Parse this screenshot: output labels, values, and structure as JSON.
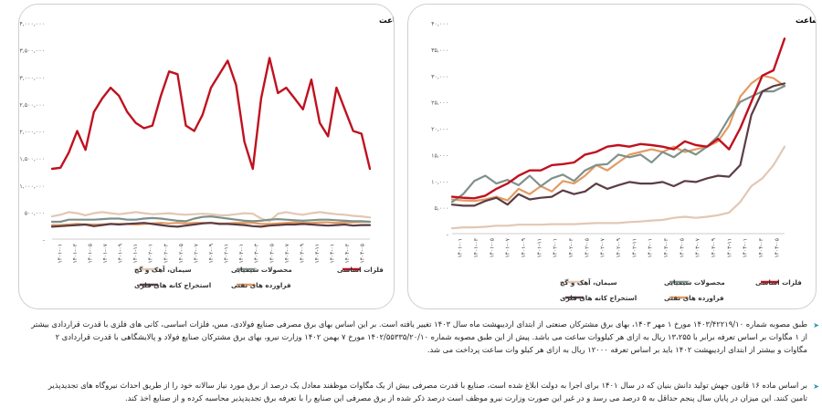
{
  "chart_data": [
    {
      "type": "line",
      "title": "روند نرخ برق در صنایع انرژی بر بازار سرمایه - ریال / مگاوات ساعت",
      "y_ticks": [
        "۴۰,۰۰۰",
        "۳۵,۰۰۰",
        "۳۰,۰۰۰",
        "۲۵,۰۰۰",
        "۲۰,۰۰۰",
        "۱۵,۰۰۰",
        "۱۰,۰۰۰",
        "۵,۰۰۰",
        "-"
      ],
      "ylim": [
        0,
        40000
      ],
      "x_labels": [
        "۱۴۰۱-۰۱",
        "۱۴۰۱-۰۳",
        "۱۴۰۱-۰۵",
        "۱۴۰۱-۰۷",
        "۱۴۰۱-۰۹",
        "۱۴۰۱-۱۱",
        "۱۴۰۲-۰۱",
        "۱۴۰۲-۰۳",
        "۱۴۰۲-۰۵",
        "۱۴۰۲-۰۷",
        "۱۴۰۲-۰۹",
        "۱۴۰۲-۱۱",
        "۱۴۰۳-۰۱",
        "۱۴۰۳-۰۳",
        "۱۴۰۳-۰۵",
        "۱۴۰۳-۰۷",
        "۱۴۰۳-۰۹",
        "۱۴۰۳-۱۱",
        "۱۴۰۴-۰۱",
        "۱۴۰۴-۰۳",
        "۱۴۰۴-۰۵"
      ],
      "legend": [
        "فلزات اساسی",
        "محصولات شیمیایی",
        "سیمان، آهک و گچ",
        "فراورده های نفتی",
        "استخراج کانه های فلزی"
      ],
      "series": [
        {
          "name": "فلزات اساسی",
          "color": "#c0111f",
          "values": [
            7000,
            6800,
            6700,
            7200,
            8500,
            9500,
            11000,
            12000,
            12000,
            13000,
            13200,
            13500,
            15000,
            15500,
            16500,
            16800,
            16500,
            17000,
            16800,
            16500,
            16000,
            17500,
            16800,
            16500,
            18000,
            16000,
            20000,
            25000,
            30000,
            31000,
            37000
          ]
        },
        {
          "name": "محصولات شیمیایی",
          "color": "#7f918a",
          "values": [
            6000,
            7500,
            10000,
            11000,
            9500,
            10200,
            9200,
            11000,
            9000,
            10500,
            11200,
            10000,
            12000,
            13000,
            13200,
            15000,
            14500,
            15000,
            13500,
            15500,
            14500,
            16000,
            15000,
            16500,
            18500,
            22000,
            25000,
            26000,
            27000,
            27000,
            28000
          ]
        },
        {
          "name": "سیمان، آهک و گچ",
          "color": "#e3c7b3",
          "values": [
            1000,
            1200,
            1200,
            1300,
            1500,
            1500,
            1700,
            1700,
            1700,
            1800,
            1800,
            1800,
            1900,
            2000,
            2000,
            2000,
            2200,
            2300,
            2500,
            2600,
            3000,
            3200,
            3000,
            3200,
            3500,
            4000,
            6000,
            9000,
            10500,
            13000,
            16500
          ]
        },
        {
          "name": "فراورده های نفتی",
          "color": "#e39b63",
          "values": [
            6500,
            6300,
            6200,
            6500,
            7000,
            6300,
            8500,
            7500,
            9000,
            8000,
            10000,
            9500,
            11000,
            13000,
            12000,
            13500,
            15000,
            15500,
            16000,
            15500,
            16500,
            15500,
            16000,
            16500,
            17500,
            20500,
            26000,
            28500,
            30000,
            29500,
            28000
          ]
        },
        {
          "name": "استخراج کانه های فلزی",
          "color": "#5b3d42",
          "values": [
            5500,
            5300,
            5300,
            6200,
            6800,
            5500,
            7500,
            6500,
            6800,
            7000,
            8200,
            7500,
            8000,
            9500,
            8500,
            9200,
            9800,
            9500,
            9500,
            9800,
            9000,
            10000,
            9800,
            10500,
            11000,
            10800,
            13000,
            22500,
            27000,
            28000,
            28500
          ]
        }
      ]
    },
    {
      "type": "line",
      "title": "روند مقداری مصرف انرژی برق در صنایع انرژی بر بازار سرمایه - مگاوات ساعت",
      "y_ticks": [
        "۴,۰۰۰,۰۰۰",
        "۳,۵۰۰,۰۰۰",
        "۳,۰۰۰,۰۰۰",
        "۲,۵۰۰,۰۰۰",
        "۲,۰۰۰,۰۰۰",
        "۱,۵۰۰,۰۰۰",
        "۱,۰۰۰,۰۰۰",
        "۵۰۰,۰۰۰",
        "-"
      ],
      "ylim": [
        0,
        4000000
      ],
      "x_labels": [
        "۱۴۰۱-۰۱",
        "۱۴۰۱-۰۳",
        "۱۴۰۱-۰۵",
        "۱۴۰۱-۰۷",
        "۱۴۰۱-۰۹",
        "۱۴۰۱-۱۱",
        "۱۴۰۲-۰۱",
        "۱۴۰۲-۰۳",
        "۱۴۰۲-۰۵",
        "۱۴۰۲-۰۷",
        "۱۴۰۲-۰۹",
        "۱۴۰۲-۱۱",
        "۱۴۰۳-۰۱",
        "۱۴۰۳-۰۳",
        "۱۴۰۳-۰۵",
        "۱۴۰۳-۰۷",
        "۱۴۰۳-۰۹",
        "۱۴۰۳-۱۱",
        "۱۴۰۴-۰۱",
        "۱۴۰۴-۰۳",
        "۱۴۰۴-۰۵"
      ],
      "legend": [
        "فلزات اساسی",
        "محصولات شیمیایی",
        "سیمان، آهک و گچ",
        "فراورده های نفتی",
        "استخراج کانه های فلزی"
      ],
      "series": [
        {
          "name": "فلزات اساسی",
          "color": "#c0111f",
          "values": [
            1300000,
            1320000,
            1600000,
            2000000,
            1650000,
            2350000,
            2600000,
            2800000,
            2650000,
            2350000,
            2150000,
            2050000,
            2100000,
            2650000,
            3100000,
            3050000,
            2100000,
            2000000,
            2300000,
            2800000,
            3050000,
            3300000,
            2850000,
            1800000,
            1300000,
            2600000,
            3350000,
            2700000,
            2800000,
            2600000,
            2400000,
            2950000,
            2150000,
            1900000,
            2800000,
            2400000,
            2000000,
            1950000,
            1300000
          ]
        },
        {
          "name": "محصولات شیمیایی",
          "color": "#7f918a",
          "values": [
            320000,
            320000,
            360000,
            360000,
            360000,
            360000,
            370000,
            380000,
            380000,
            360000,
            360000,
            380000,
            390000,
            380000,
            360000,
            340000,
            330000,
            380000,
            410000,
            420000,
            400000,
            380000,
            360000,
            340000,
            330000,
            340000,
            360000,
            370000,
            360000,
            350000,
            340000,
            350000,
            360000,
            360000,
            350000,
            340000,
            330000,
            330000,
            320000
          ]
        },
        {
          "name": "سیمان، آهک و گچ",
          "color": "#e3c7b3",
          "values": [
            420000,
            450000,
            500000,
            480000,
            440000,
            480000,
            500000,
            480000,
            460000,
            480000,
            500000,
            480000,
            460000,
            470000,
            480000,
            460000,
            450000,
            460000,
            470000,
            460000,
            440000,
            440000,
            460000,
            480000,
            470000,
            380000,
            330000,
            470000,
            500000,
            470000,
            450000,
            480000,
            500000,
            480000,
            460000,
            450000,
            430000,
            420000,
            400000
          ]
        },
        {
          "name": "فراورده های نفتی",
          "color": "#e39b63",
          "values": [
            260000,
            260000,
            270000,
            280000,
            270000,
            270000,
            270000,
            280000,
            280000,
            280000,
            270000,
            280000,
            290000,
            300000,
            290000,
            300000,
            290000,
            300000,
            300000,
            300000,
            290000,
            290000,
            300000,
            300000,
            300000,
            280000,
            280000,
            290000,
            300000,
            310000,
            300000,
            300000,
            310000,
            310000,
            300000,
            310000,
            310000,
            320000,
            320000
          ]
        },
        {
          "name": "استخراج کانه های فلزی",
          "color": "#5b3d42",
          "values": [
            230000,
            240000,
            250000,
            260000,
            270000,
            240000,
            260000,
            280000,
            270000,
            280000,
            290000,
            300000,
            280000,
            260000,
            240000,
            230000,
            250000,
            270000,
            290000,
            300000,
            280000,
            280000,
            270000,
            260000,
            240000,
            230000,
            250000,
            260000,
            270000,
            270000,
            280000,
            270000,
            260000,
            250000,
            260000,
            270000,
            250000,
            260000,
            260000
          ]
        }
      ]
    }
  ],
  "paragraphs": [
    "طبق مصوبه شماره ۱۴۰۳/۴۲۲۱۹/۱۰ مورخ ۱ مهر ۱۴۰۳، بهای برق مشترکان صنعتی از ابتدای اردیبهشت ماه سال ۱۴۰۳ تغییر یافته است. بر این اساس بهای برق مصرفی صنایع فولادی، مس، فلزات اساسی، کانی های فلزی با قدرت قراردادی بیشتر از ۱ مگاوات بر اساس تعرفه برابر با ۱۳،۲۵۵ ریال به ازای هر کیلووات ساعت می باشد. پیش از این طبق مصوبه شماره ۱۴۰۲/۵۵۳۳۵/۲۰/۱۰ مورخ ۷ بهمن ۱۴۰۲ وزارت نیرو، بهای برق مشترکان صنایع فولاد و پالایشگاهی با قدرت قراردادی ۲ مگاوات و بیشتر از ابتدای اردیبهشت ۱۴۰۲ باید بر اساس تعرفه ۱۲۰۰۰ ریال به ازای هر کیلو وات ساعت پرداخت می شد.",
    "بر اساس ماده ۱۶ قانون جهش تولید دانش بنیان که در سال ۱۴۰۱ برای اجرا به دولت ابلاغ شده است، صنایع با قدرت مصرفی بیش از یک مگاوات موظفند معادل یک درصد از برق مورد نیاز سالانه خود را از طریق احداث نیروگاه های تجدیدپذیر تامین کنند. این میزان در پایان سال پنجم حداقل به ۵ درصد می رسد و در غیر این صورت وزارت نیرو موظف است درصد ذکر شده از برق مصرفی این صنایع را با تعرفه برق تجدیدپذیر محاسبه کرده و از صنایع اخذ کند."
  ]
}
